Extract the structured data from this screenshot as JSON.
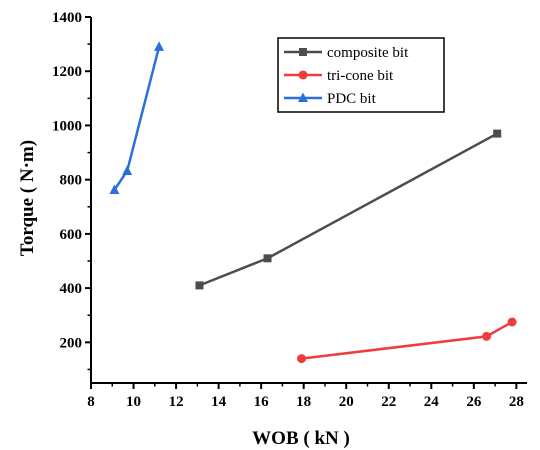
{
  "chart_data": {
    "type": "line",
    "title": "",
    "xlabel": "WOB ( kN )",
    "ylabel": "Torque ( N·m)",
    "xlim": [
      8,
      28.5
    ],
    "ylim": [
      50,
      1400
    ],
    "xticks": [
      8,
      10,
      12,
      14,
      16,
      18,
      20,
      22,
      24,
      26,
      28
    ],
    "yticks": [
      200,
      400,
      600,
      800,
      1000,
      1200,
      1400
    ],
    "grid": false,
    "legend_position": "top-right",
    "series": [
      {
        "name": "composite bit",
        "color": "#4d4d4d",
        "marker": "square",
        "points": [
          [
            13.1,
            410
          ],
          [
            16.3,
            510
          ],
          [
            27.1,
            970
          ]
        ]
      },
      {
        "name": "tri-cone bit",
        "color": "#f03c3c",
        "marker": "circle",
        "points": [
          [
            17.9,
            140
          ],
          [
            26.6,
            222
          ],
          [
            27.8,
            275
          ]
        ]
      },
      {
        "name": "PDC bit",
        "color": "#2a6fdb",
        "marker": "triangle",
        "points": [
          [
            9.1,
            762
          ],
          [
            9.7,
            832
          ],
          [
            11.2,
            1290
          ]
        ]
      }
    ]
  }
}
